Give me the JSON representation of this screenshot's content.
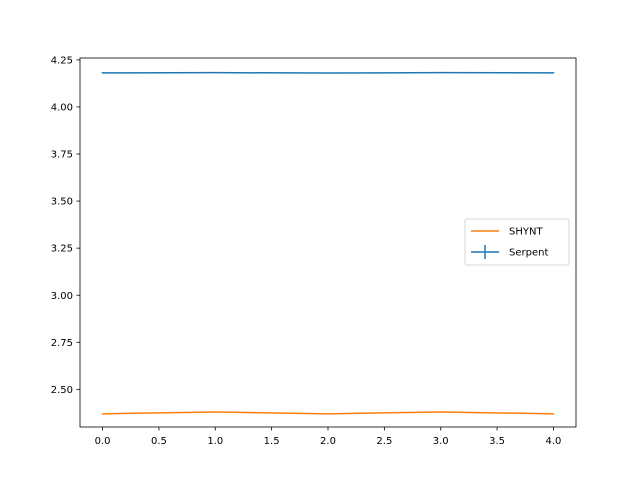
{
  "chart_data": {
    "type": "line",
    "title": "",
    "xlabel": "",
    "ylabel": "",
    "xlim": [
      -0.2,
      4.2
    ],
    "ylim": [
      2.3,
      4.26
    ],
    "x_ticks": [
      0.0,
      0.5,
      1.0,
      1.5,
      2.0,
      2.5,
      3.0,
      3.5,
      4.0
    ],
    "x_tick_labels": [
      "0.0",
      "0.5",
      "1.0",
      "1.5",
      "2.0",
      "2.5",
      "3.0",
      "3.5",
      "4.0"
    ],
    "y_ticks": [
      2.5,
      2.75,
      3.0,
      3.25,
      3.5,
      3.75,
      4.0,
      4.25
    ],
    "y_tick_labels": [
      "2.50",
      "2.75",
      "3.00",
      "3.25",
      "3.50",
      "3.75",
      "4.00",
      "4.25"
    ],
    "grid": false,
    "legend_position": "center-right",
    "series": [
      {
        "name": "SHYNT",
        "color": "#ff7f0e",
        "style": "line",
        "x": [
          0,
          1,
          2,
          3,
          4
        ],
        "values": [
          2.37,
          2.38,
          2.37,
          2.38,
          2.37
        ]
      },
      {
        "name": "Serpent",
        "color": "#1f77b4",
        "style": "errorbar",
        "x": [
          0,
          1,
          2,
          3,
          4
        ],
        "values": [
          4.181,
          4.182,
          4.18,
          4.182,
          4.181
        ],
        "errors": [
          0.001,
          0.001,
          0.001,
          0.001,
          0.001
        ]
      }
    ],
    "legend": [
      {
        "label": "SHYNT",
        "color": "#ff7f0e",
        "marker": "line"
      },
      {
        "label": "Serpent",
        "color": "#1f77b4",
        "marker": "errorbar"
      }
    ]
  }
}
